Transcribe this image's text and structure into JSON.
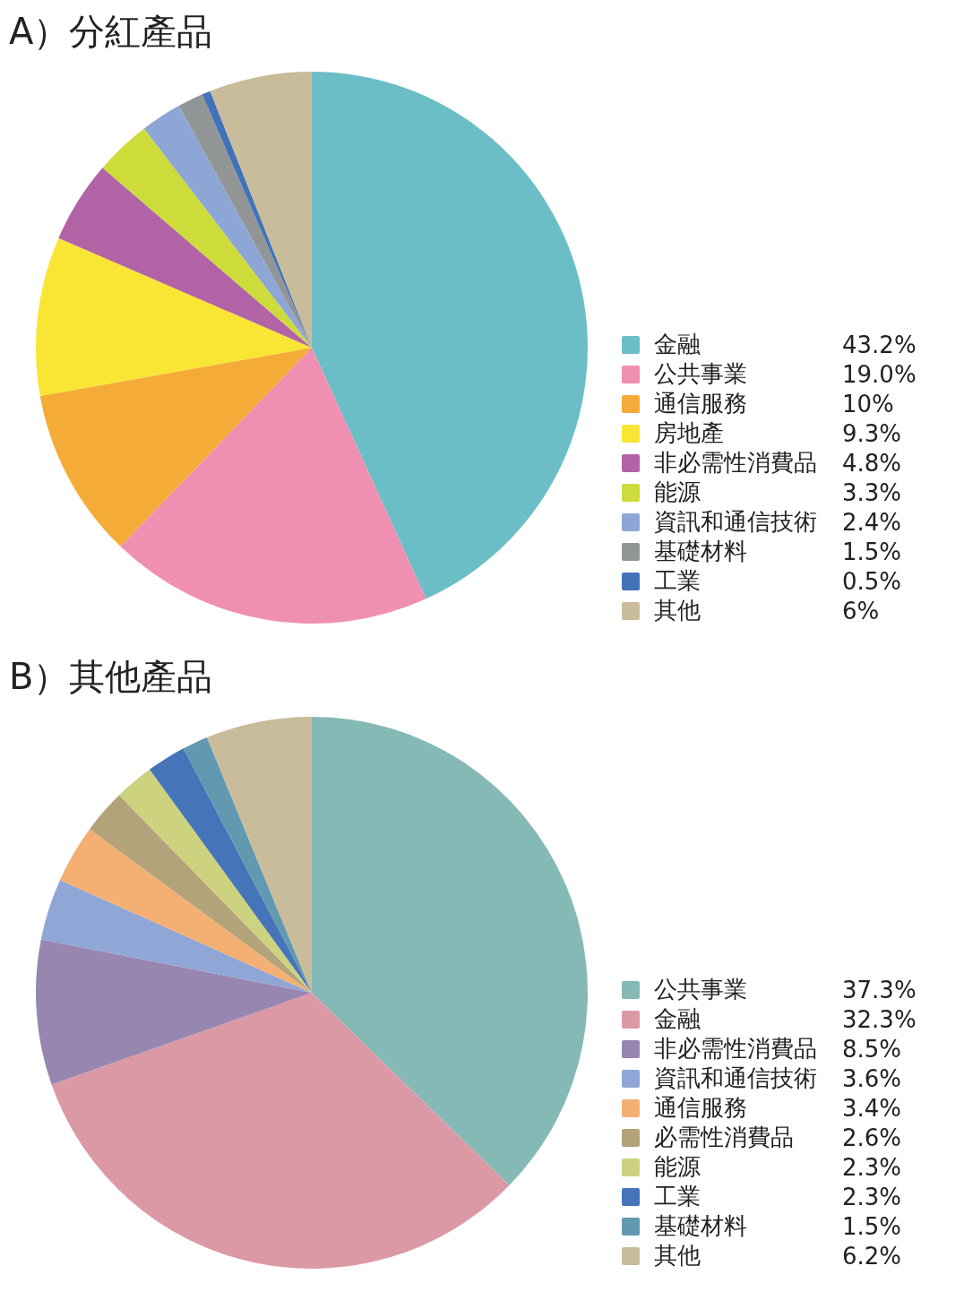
{
  "chart_data": [
    {
      "type": "pie",
      "title": "A）分紅產品",
      "legend": "right",
      "categories": [
        "金融",
        "公共事業",
        "通信服務",
        "房地產",
        "非必需性消費品",
        "能源",
        "資訊和通信技術",
        "基礎材料",
        "工業",
        "其他"
      ],
      "values": [
        43.2,
        19.0,
        10,
        9.3,
        4.8,
        3.3,
        2.4,
        1.5,
        0.5,
        6
      ],
      "value_labels": [
        "43.2%",
        "19.0%",
        "10%",
        "9.3%",
        "4.8%",
        "3.3%",
        "2.4%",
        "1.5%",
        "0.5%",
        "6%"
      ],
      "colors": [
        "#6bbec6",
        "#ef8fb1",
        "#f5ab37",
        "#f9e534",
        "#b263a5",
        "#cddc3a",
        "#8ea6d6",
        "#929595",
        "#4273b9",
        "#c9bc9a"
      ]
    },
    {
      "type": "pie",
      "title": "B）其他產品",
      "legend": "right",
      "categories": [
        "公共事業",
        "金融",
        "非必需性消費品",
        "資訊和通信技術",
        "通信服務",
        "必需性消費品",
        "能源",
        "工業",
        "基礎材料",
        "其他"
      ],
      "values": [
        37.3,
        32.3,
        8.5,
        3.6,
        3.4,
        2.6,
        2.3,
        2.3,
        1.5,
        6.2
      ],
      "value_labels": [
        "37.3%",
        "32.3%",
        "8.5%",
        "3.6%",
        "3.4%",
        "2.6%",
        "2.3%",
        "2.3%",
        "1.5%",
        "6.2%"
      ],
      "colors": [
        "#85b9b5",
        "#db99a6",
        "#9787b0",
        "#8fa6d6",
        "#f3b072",
        "#b3a37a",
        "#cdd27e",
        "#4574b9",
        "#6399b0",
        "#c9bc9a"
      ]
    }
  ]
}
